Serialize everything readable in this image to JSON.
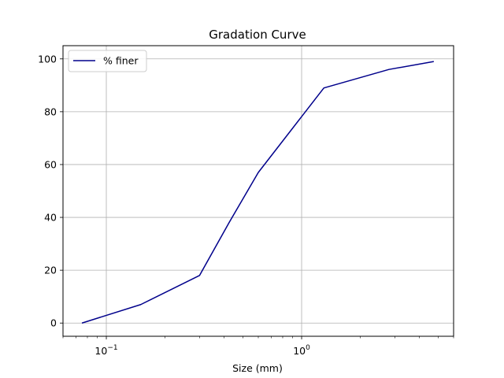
{
  "chart_data": {
    "type": "line",
    "title": "Gradation Curve",
    "xlabel": "Size (mm)",
    "ylabel": "",
    "xscale": "log",
    "xlim": [
      0.06,
      6.0
    ],
    "ylim": [
      -5,
      105
    ],
    "xticks": [
      {
        "value": 0.1,
        "base": "10",
        "exp": "−1"
      },
      {
        "value": 1,
        "base": "10",
        "exp": "0"
      }
    ],
    "yticks": [
      0,
      20,
      40,
      60,
      80,
      100
    ],
    "grid": true,
    "legend_position": "top-left",
    "series": [
      {
        "name": "% finer",
        "color": "#00008b",
        "x": [
          0.075,
          0.15,
          0.3,
          0.425,
          0.6,
          1.18,
          1.3,
          2.8,
          4.75
        ],
        "y": [
          0,
          7,
          18,
          38,
          57,
          85,
          89,
          96,
          99
        ]
      }
    ]
  }
}
